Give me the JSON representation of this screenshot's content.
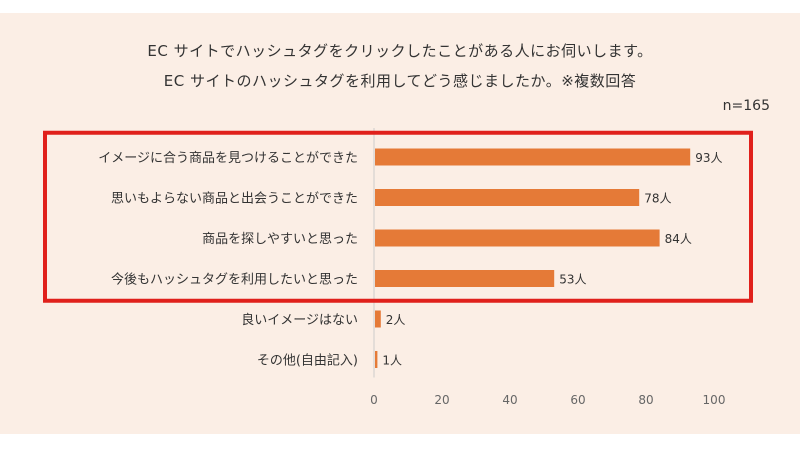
{
  "chart_data": {
    "type": "bar",
    "orientation": "horizontal",
    "title": "EC サイトでハッシュタグをクリックしたことがある人にお伺いします。",
    "subtitle": "EC サイトのハッシュタグを利用してどう感じましたか。※複数回答",
    "sample_size": "n=165",
    "categories": [
      "イメージに合う商品を見つけることができた",
      "思いもよらない商品と出会うことができた",
      "商品を探しやすいと思った",
      "今後もハッシュタグを利用したいと思った",
      "良いイメージはない",
      "その他(自由記入)"
    ],
    "values": [
      93,
      78,
      84,
      53,
      2,
      1
    ],
    "value_labels": [
      "93人",
      "78人",
      "84人",
      "53人",
      "2人",
      "1人"
    ],
    "xlim": [
      0,
      100
    ],
    "xticks": [
      0,
      20,
      40,
      60,
      80,
      100
    ],
    "highlighted_categories": 4,
    "grid": false,
    "colors": {
      "bar": "#e57a37",
      "highlight_border": "#e0201b",
      "background": "#fbeee5",
      "axis": "#cccccc"
    }
  }
}
